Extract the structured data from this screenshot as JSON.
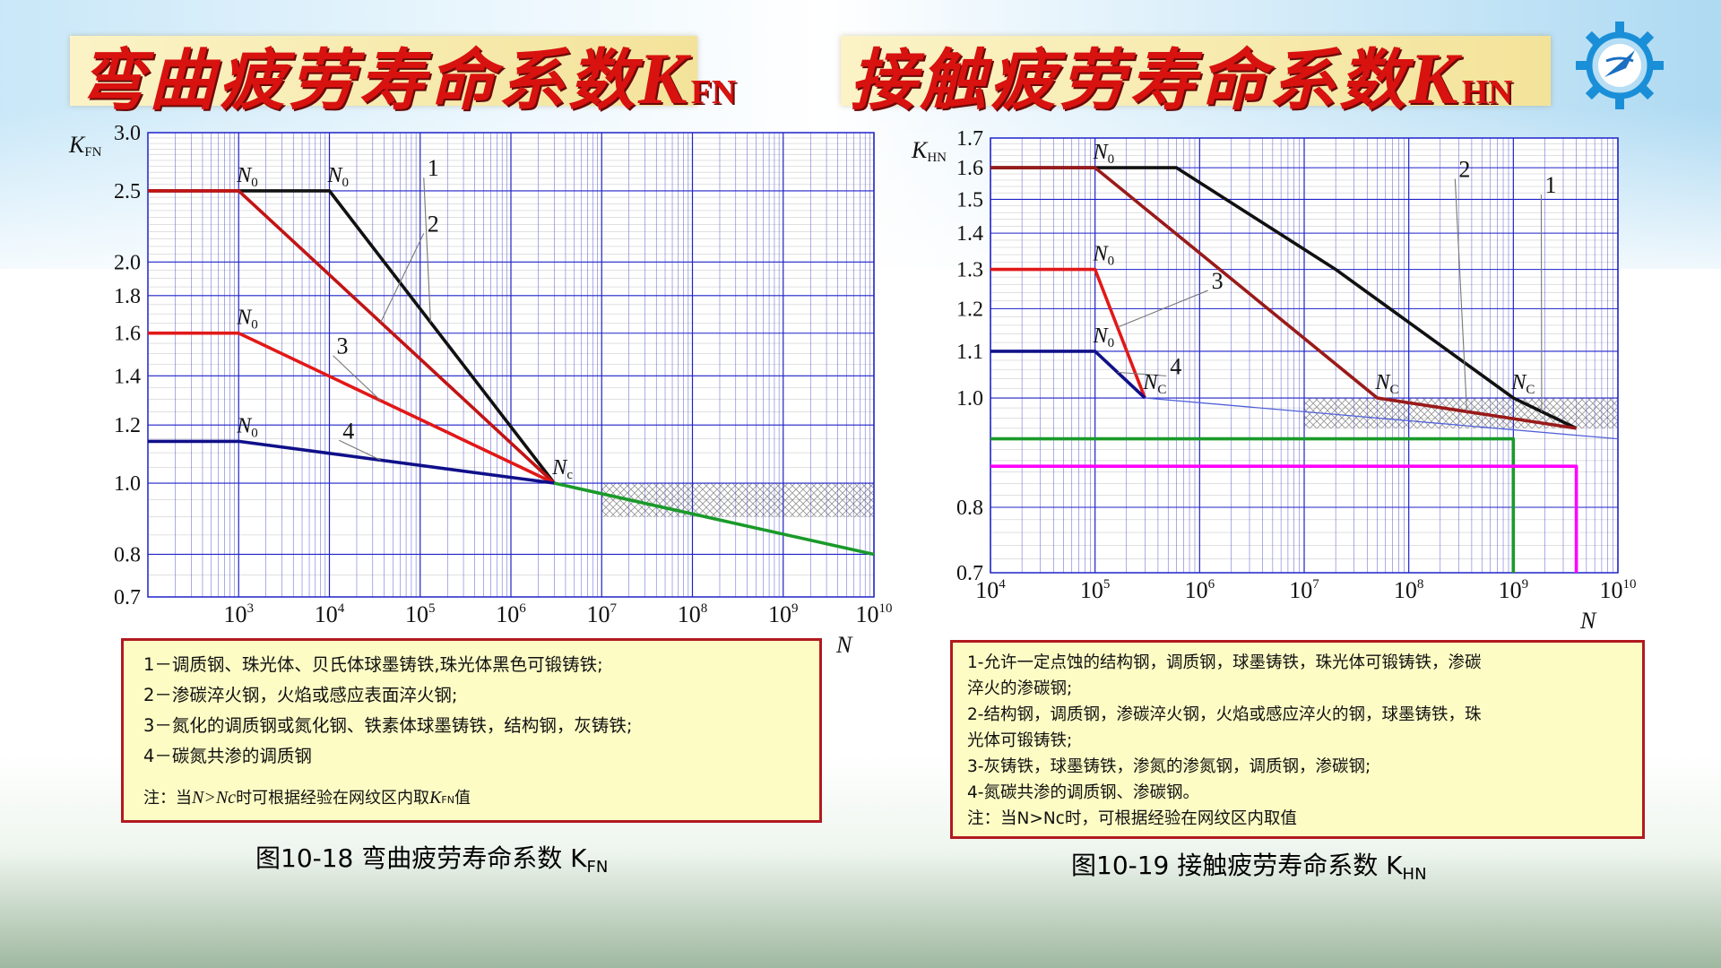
{
  "slide": {
    "title_left": {
      "main": "弯曲疲劳寿命系数",
      "k": "K",
      "sub": "FN"
    },
    "title_right": {
      "main": "接触疲劳寿命系数",
      "k": "K",
      "sub": "HN"
    }
  },
  "colors": {
    "title_red": "#d8120f",
    "grid_blue": "#1f22c8",
    "curve_black": "#111111",
    "curve_darkred": "#b01010",
    "curve_red": "#e21818",
    "curve_blue": "#10108a",
    "green": "#1a9a2a",
    "magenta": "#ff00ff",
    "legend_bg": "#fdfcc5",
    "legend_border": "#b11a1f"
  },
  "icons": {
    "logo": "gear-logo-icon"
  },
  "chart_data": [
    {
      "type": "line",
      "y_axis_label": {
        "k": "K",
        "sub": "FN"
      },
      "x_axis_label": "N",
      "x_scale": "log",
      "y_scale": "log",
      "xlim": [
        100,
        10000000000
      ],
      "ylim": [
        0.7,
        3.0
      ],
      "x_ticks": [
        1000,
        10000,
        100000,
        1000000,
        10000000,
        100000000,
        1000000000,
        10000000000
      ],
      "x_tick_labels": [
        {
          "b": "10",
          "e": "3"
        },
        {
          "b": "10",
          "e": "4"
        },
        {
          "b": "10",
          "e": "5"
        },
        {
          "b": "10",
          "e": "6"
        },
        {
          "b": "10",
          "e": "7"
        },
        {
          "b": "10",
          "e": "8"
        },
        {
          "b": "10",
          "e": "9"
        },
        {
          "b": "10",
          "e": "10"
        }
      ],
      "y_ticks": [
        0.7,
        0.8,
        1.0,
        1.2,
        1.4,
        1.6,
        1.8,
        2.0,
        2.5,
        3.0
      ],
      "y_tick_labels": [
        "0.7",
        "0.8",
        "1.0",
        "1.2",
        "1.4",
        "1.6",
        "1.8",
        "2.0",
        "2.5",
        "3.0"
      ],
      "grid": true,
      "series": [
        {
          "name": "1",
          "color": "#111111",
          "points": [
            [
              100,
              2.5
            ],
            [
              10000,
              2.5
            ],
            [
              3000000,
              1.0
            ]
          ],
          "label_at": [
            120000,
            2.62
          ]
        },
        {
          "name": "2",
          "color": "#c21414",
          "points": [
            [
              100,
              2.5
            ],
            [
              1000,
              2.5
            ],
            [
              3000000,
              1.0
            ]
          ],
          "label_at": [
            120000,
            2.2
          ]
        },
        {
          "name": "3",
          "color": "#e21818",
          "points": [
            [
              100,
              1.6
            ],
            [
              1000,
              1.6
            ],
            [
              3000000,
              1.0
            ]
          ],
          "label_at": [
            12000,
            1.5
          ]
        },
        {
          "name": "4",
          "color": "#10108a",
          "points": [
            [
              100,
              1.14
            ],
            [
              1000,
              1.14
            ],
            [
              3000000,
              1.0
            ]
          ],
          "label_at": [
            14000,
            1.15
          ]
        },
        {
          "name": "",
          "color": "#1a9a2a",
          "points": [
            [
              3000000,
              1.0
            ],
            [
              10000000000,
              0.8
            ]
          ]
        }
      ],
      "annotations": [
        {
          "text": "N",
          "sub": "0",
          "at": [
            1000,
            2.5
          ]
        },
        {
          "text": "N",
          "sub": "0",
          "at": [
            10000,
            2.5
          ]
        },
        {
          "text": "N",
          "sub": "0",
          "at": [
            1000,
            1.6
          ]
        },
        {
          "text": "N",
          "sub": "0",
          "at": [
            1000,
            1.14
          ]
        },
        {
          "text": "N",
          "sub": "c",
          "at": [
            3000000,
            1.0
          ]
        }
      ],
      "hatched_region": {
        "x": [
          10000000,
          10000000000
        ],
        "y": [
          0.9,
          1.0
        ]
      }
    },
    {
      "type": "line",
      "y_axis_label": {
        "k": "K",
        "sub": "HN"
      },
      "x_axis_label": "N",
      "x_scale": "log",
      "y_scale": "log",
      "xlim": [
        10000,
        10000000000
      ],
      "ylim": [
        0.7,
        1.7
      ],
      "x_ticks": [
        10000,
        100000,
        1000000,
        10000000,
        100000000,
        1000000000,
        10000000000
      ],
      "x_tick_labels": [
        {
          "b": "10",
          "e": "4"
        },
        {
          "b": "10",
          "e": "5"
        },
        {
          "b": "10",
          "e": "6"
        },
        {
          "b": "10",
          "e": "7"
        },
        {
          "b": "10",
          "e": "8"
        },
        {
          "b": "10",
          "e": "9"
        },
        {
          "b": "10",
          "e": "10"
        }
      ],
      "y_ticks": [
        0.7,
        0.8,
        1.0,
        1.1,
        1.2,
        1.3,
        1.4,
        1.5,
        1.6,
        1.7
      ],
      "y_tick_labels": [
        "0.7",
        "0.8",
        "1.0",
        "1.1",
        "1.2",
        "1.3",
        "1.4",
        "1.5",
        "1.6",
        "1.7"
      ],
      "grid": true,
      "series": [
        {
          "name": "1",
          "color": "#111111",
          "points": [
            [
              10000,
              1.6
            ],
            [
              600000,
              1.6
            ],
            [
              20000000,
              1.3
            ],
            [
              1000000000,
              1.0
            ],
            [
              4000000000,
              0.94
            ]
          ],
          "label_at": [
            2000000000,
            1.52
          ]
        },
        {
          "name": "2",
          "color": "#9a1a1a",
          "points": [
            [
              10000,
              1.6
            ],
            [
              100000,
              1.6
            ],
            [
              50000000,
              1.0
            ],
            [
              4000000000,
              0.94
            ]
          ],
          "label_at": [
            300000000,
            1.57
          ]
        },
        {
          "name": "3",
          "color": "#e21818",
          "points": [
            [
              10000,
              1.3
            ],
            [
              100000,
              1.3
            ],
            [
              300000,
              1.0
            ]
          ],
          "label_at": [
            1300000,
            1.25
          ]
        },
        {
          "name": "4",
          "color": "#10108a",
          "points": [
            [
              10000,
              1.1
            ],
            [
              100000,
              1.1
            ],
            [
              300000,
              1.0
            ]
          ],
          "label_at": [
            520000,
            1.05
          ]
        },
        {
          "name": "",
          "color": "#5060d8",
          "points": [
            [
              300000,
              1.0
            ],
            [
              10000000000,
              0.92
            ]
          ]
        },
        {
          "name": "",
          "color": "#1a9a2a",
          "points": [
            [
              10000,
              0.92
            ],
            [
              1000000000,
              0.92
            ],
            [
              1000000000,
              0.7
            ]
          ]
        },
        {
          "name": "",
          "color": "#ff00ff",
          "points": [
            [
              10000,
              0.87
            ],
            [
              4000000000,
              0.87
            ],
            [
              4000000000,
              0.7
            ]
          ]
        }
      ],
      "annotations": [
        {
          "text": "N",
          "sub": "0",
          "at": [
            100000,
            1.6
          ]
        },
        {
          "text": "N",
          "sub": "0",
          "at": [
            100000,
            1.3
          ]
        },
        {
          "text": "N",
          "sub": "0",
          "at": [
            100000,
            1.1
          ]
        },
        {
          "text": "N",
          "sub": "C",
          "at": [
            300000,
            1.0
          ]
        },
        {
          "text": "N",
          "sub": "C",
          "at": [
            50000000,
            1.0
          ]
        },
        {
          "text": "N",
          "sub": "C",
          "at": [
            1000000000,
            1.0
          ]
        }
      ],
      "hatched_region": {
        "x": [
          10000000,
          10000000000
        ],
        "y": [
          0.94,
          1.0
        ]
      }
    }
  ],
  "legend_left": {
    "lines": [
      "1－调质钢、珠光体、贝氏体球墨铸铁,珠光体黑色可锻铸铁;",
      "2－渗碳淬火钢，火焰或感应表面淬火钢;",
      "3－氮化的调质钢或氮化钢、铁素体球墨铸铁，结构钢，灰铸铁;",
      "4－碳氮共渗的调质钢"
    ],
    "note_prefix": "注：当",
    "note_cond": "N>Nc",
    "note_mid": "时可根据经验在网纹区内取",
    "note_k": "K",
    "note_sub": "FN",
    "note_suffix": "值"
  },
  "legend_right": {
    "lines": [
      "1-允许一定点蚀的结构钢，调质钢，球墨铸铁，珠光体可锻铸铁，渗碳",
      "淬火的渗碳钢;",
      "2-结构钢，调质钢，渗碳淬火钢，火焰或感应淬火的钢，球墨铸铁，珠",
      "光体可锻铸铁;",
      "3-灰铸铁，球墨铸铁，渗氮的渗氮钢，调质钢，渗碳钢;",
      "4-氮碳共渗的调质钢、渗碳钢。",
      "注：当N>Nc时，可根据经验在网纹区内取值"
    ]
  },
  "captions": {
    "left": {
      "text": "图10-18  弯曲疲劳寿命系数 K",
      "sub": "FN"
    },
    "right": {
      "text": "图10-19  接触疲劳寿命系数 K",
      "sub": "HN"
    }
  }
}
